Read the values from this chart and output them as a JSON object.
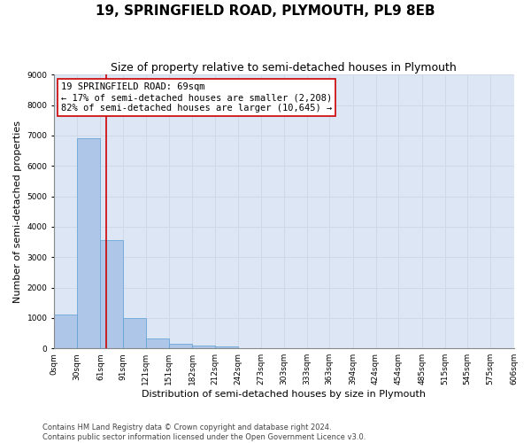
{
  "title": "19, SPRINGFIELD ROAD, PLYMOUTH, PL9 8EB",
  "subtitle": "Size of property relative to semi-detached houses in Plymouth",
  "xlabel": "Distribution of semi-detached houses by size in Plymouth",
  "ylabel": "Number of semi-detached properties",
  "property_size": 69,
  "annotation_line1": "19 SPRINGFIELD ROAD: 69sqm",
  "annotation_line2": "← 17% of semi-detached houses are smaller (2,208)",
  "annotation_line3": "82% of semi-detached houses are larger (10,645) →",
  "bar_color": "#aec6e8",
  "bar_edge_color": "#5a9fd4",
  "vline_color": "#cc0000",
  "grid_color": "#d0d8e8",
  "background_color": "#dce6f5",
  "annotation_box_color": "#ffffff",
  "annotation_box_edge": "#cc0000",
  "bins": [
    0,
    30,
    61,
    91,
    121,
    151,
    182,
    212,
    242,
    273,
    303,
    333,
    363,
    394,
    424,
    454,
    485,
    515,
    545,
    575,
    606
  ],
  "bin_labels": [
    "0sqm",
    "30sqm",
    "61sqm",
    "91sqm",
    "121sqm",
    "151sqm",
    "182sqm",
    "212sqm",
    "242sqm",
    "273sqm",
    "303sqm",
    "333sqm",
    "363sqm",
    "394sqm",
    "424sqm",
    "454sqm",
    "485sqm",
    "515sqm",
    "545sqm",
    "575sqm",
    "606sqm"
  ],
  "bar_heights": [
    1120,
    6900,
    3560,
    1000,
    320,
    140,
    100,
    70,
    0,
    0,
    0,
    0,
    0,
    0,
    0,
    0,
    0,
    0,
    0,
    0
  ],
  "ylim": [
    0,
    9000
  ],
  "yticks": [
    0,
    1000,
    2000,
    3000,
    4000,
    5000,
    6000,
    7000,
    8000,
    9000
  ],
  "footer_line1": "Contains HM Land Registry data © Crown copyright and database right 2024.",
  "footer_line2": "Contains public sector information licensed under the Open Government Licence v3.0.",
  "title_fontsize": 11,
  "subtitle_fontsize": 9,
  "label_fontsize": 8,
  "tick_fontsize": 6.5,
  "annotation_fontsize": 7.5,
  "footer_fontsize": 6
}
